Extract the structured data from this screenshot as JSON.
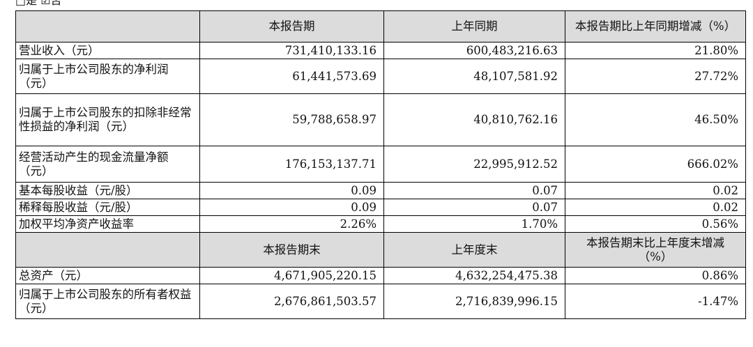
{
  "top_note": "□是 ☑否",
  "header1": {
    "blank": "",
    "col2": "本报告期",
    "col3": "上年同期",
    "col4": "本报告期比上年同期增减（%）"
  },
  "rows1": [
    {
      "label": "营业收入（元）",
      "current": "731,410,133.16",
      "previous": "600,483,216.63",
      "change": "21.80%"
    },
    {
      "label": "归属于上市公司股东的净利润（元）",
      "current": "61,441,573.69",
      "previous": "48,107,581.92",
      "change": "27.72%"
    },
    {
      "label": "归属于上市公司股东的扣除非经常性损益的净利润（元）",
      "current": "59,788,658.97",
      "previous": "40,810,762.16",
      "change": "46.50%"
    },
    {
      "label": "经营活动产生的现金流量净额（元）",
      "current": "176,153,137.71",
      "previous": "22,995,912.52",
      "change": "666.02%"
    },
    {
      "label": "基本每股收益（元/股）",
      "current": "0.09",
      "previous": "0.07",
      "change": "0.02"
    },
    {
      "label": "稀释每股收益（元/股）",
      "current": "0.09",
      "previous": "0.07",
      "change": "0.02"
    },
    {
      "label": "加权平均净资产收益率",
      "current": "2.26%",
      "previous": "1.70%",
      "change": "0.56%"
    }
  ],
  "header2": {
    "blank": "",
    "col2": "本报告期末",
    "col3": "上年度末",
    "col4": "本报告期末比上年度末增减（%）"
  },
  "rows2": [
    {
      "label": "总资产（元）",
      "current": "4,671,905,220.15",
      "previous": "4,632,254,475.38",
      "change": "0.86%"
    },
    {
      "label": "归属于上市公司股东的所有者权益（元）",
      "current": "2,676,861,503.57",
      "previous": "2,716,839,996.15",
      "change": "-1.47%"
    }
  ]
}
